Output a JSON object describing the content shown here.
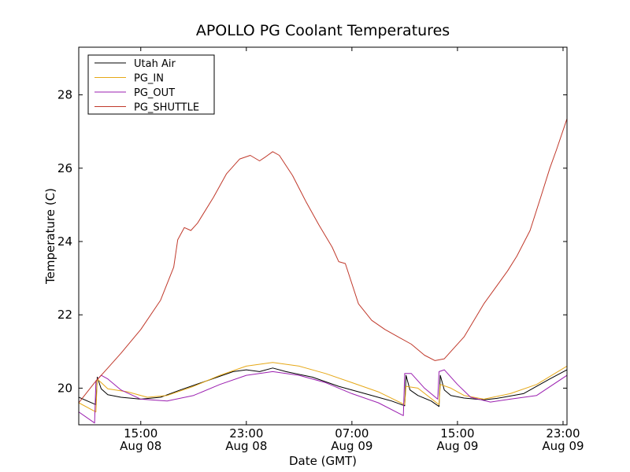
{
  "chart_data": {
    "type": "line",
    "title": "APOLLO PG Coolant Temperatures",
    "xlabel": "Date (GMT)",
    "ylabel": "Temperature (C)",
    "x_unit": "hours since 2014-08-08 00:00 GMT",
    "xlim": [
      10.3,
      47.3
    ],
    "ylim": [
      19.0,
      29.3
    ],
    "y_ticks": [
      {
        "value": 20,
        "label": "20"
      },
      {
        "value": 22,
        "label": "22"
      },
      {
        "value": 24,
        "label": "24"
      },
      {
        "value": 26,
        "label": "26"
      },
      {
        "value": 28,
        "label": "28"
      }
    ],
    "x_ticks": [
      {
        "value": 15,
        "line1": "15:00",
        "line2": "Aug 08"
      },
      {
        "value": 23,
        "line1": "23:00",
        "line2": "Aug 08"
      },
      {
        "value": 31,
        "line1": "07:00",
        "line2": "Aug 09"
      },
      {
        "value": 39,
        "line1": "15:00",
        "line2": "Aug 09"
      },
      {
        "value": 47,
        "line1": "23:00",
        "line2": "Aug 09"
      }
    ],
    "legend_position": "top-left",
    "series": [
      {
        "name": "Utah Air",
        "color": "#000000",
        "x": [
          10.3,
          11.6,
          11.7,
          12.0,
          12.5,
          13.5,
          15.0,
          16.5,
          18.0,
          20.0,
          22.0,
          23.0,
          24.0,
          25.0,
          26.0,
          28.0,
          30.0,
          32.0,
          34.0,
          35.0,
          35.1,
          35.4,
          36.0,
          37.0,
          37.6,
          37.7,
          38.0,
          38.5,
          39.5,
          41.0,
          42.0,
          44.0,
          46.0,
          47.3
        ],
        "y": [
          19.75,
          19.55,
          20.3,
          19.98,
          19.82,
          19.75,
          19.7,
          19.75,
          19.95,
          20.2,
          20.45,
          20.5,
          20.45,
          20.55,
          20.45,
          20.3,
          20.05,
          19.85,
          19.65,
          19.52,
          20.35,
          19.95,
          19.8,
          19.65,
          19.5,
          20.35,
          19.95,
          19.8,
          19.73,
          19.68,
          19.72,
          19.85,
          20.25,
          20.5
        ]
      },
      {
        "name": "PG_IN",
        "color": "#e6a817",
        "x": [
          10.3,
          11.6,
          11.7,
          12.5,
          14.0,
          15.5,
          17.0,
          19.0,
          21.0,
          23.0,
          25.0,
          27.0,
          29.0,
          31.0,
          33.0,
          35.0,
          35.1,
          36.0,
          37.6,
          37.7,
          38.5,
          39.5,
          41.0,
          43.0,
          45.0,
          47.3
        ],
        "y": [
          19.6,
          19.35,
          20.25,
          19.98,
          19.9,
          19.75,
          19.8,
          20.05,
          20.35,
          20.6,
          20.7,
          20.6,
          20.4,
          20.15,
          19.9,
          19.55,
          20.05,
          20.0,
          19.55,
          20.1,
          20.0,
          19.8,
          19.7,
          19.85,
          20.1,
          20.6
        ]
      },
      {
        "name": "PG_OUT",
        "color": "#9b1fb0",
        "x": [
          10.3,
          11.5,
          11.6,
          12.0,
          12.5,
          13.5,
          15.0,
          17.0,
          19.0,
          21.0,
          23.0,
          25.0,
          27.0,
          29.0,
          31.0,
          33.0,
          34.9,
          35.0,
          35.5,
          36.5,
          37.5,
          37.6,
          38.0,
          39.0,
          40.0,
          41.5,
          43.0,
          45.0,
          47.3
        ],
        "y": [
          19.35,
          19.05,
          20.2,
          20.35,
          20.25,
          19.95,
          19.7,
          19.65,
          19.8,
          20.1,
          20.35,
          20.45,
          20.35,
          20.15,
          19.85,
          19.6,
          19.25,
          20.4,
          20.4,
          20.0,
          19.7,
          20.45,
          20.5,
          20.1,
          19.75,
          19.62,
          19.7,
          19.8,
          20.35
        ]
      },
      {
        "name": "PG_SHUTTLE",
        "color": "#c0392b",
        "x": [
          10.3,
          11.5,
          12.5,
          13.5,
          15.0,
          16.5,
          17.5,
          17.8,
          18.3,
          18.8,
          19.3,
          20.5,
          21.5,
          22.5,
          23.3,
          24.0,
          24.5,
          25.0,
          25.5,
          26.5,
          27.5,
          28.5,
          29.5,
          30.0,
          30.5,
          31.5,
          32.5,
          33.5,
          34.5,
          35.5,
          36.5,
          37.3,
          38.0,
          38.5,
          39.5,
          41.0,
          42.0,
          42.8,
          43.5,
          44.5,
          45.3,
          46.0,
          46.5,
          47.3
        ],
        "y": [
          19.6,
          20.15,
          20.55,
          20.95,
          21.6,
          22.4,
          23.3,
          24.05,
          24.38,
          24.3,
          24.5,
          25.2,
          25.85,
          26.25,
          26.35,
          26.2,
          26.32,
          26.45,
          26.35,
          25.8,
          25.1,
          24.45,
          23.85,
          23.45,
          23.4,
          22.3,
          21.85,
          21.6,
          21.4,
          21.2,
          20.9,
          20.75,
          20.8,
          21.0,
          21.4,
          22.3,
          22.8,
          23.2,
          23.6,
          24.3,
          25.2,
          26.0,
          26.5,
          27.35
        ]
      }
    ]
  }
}
